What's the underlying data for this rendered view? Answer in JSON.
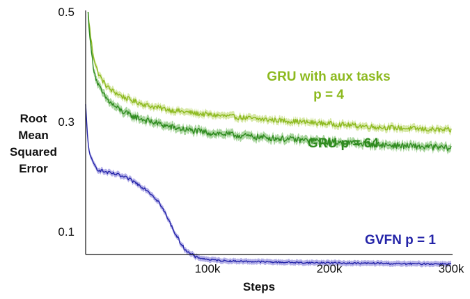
{
  "chart_data": {
    "type": "line",
    "xlabel": "Steps",
    "ylabel_lines": [
      "Root",
      "Mean",
      "Squared",
      "Error"
    ],
    "xlim": [
      0,
      300000
    ],
    "ylim": [
      0.058,
      0.5
    ],
    "x_ticks": [
      {
        "value": 100000,
        "label": "100k"
      },
      {
        "value": 200000,
        "label": "200k"
      },
      {
        "value": 300000,
        "label": "300k"
      }
    ],
    "y_ticks": [
      {
        "value": 0.5,
        "label": "0.5"
      },
      {
        "value": 0.3,
        "label": "0.3"
      },
      {
        "value": 0.1,
        "label": "0.1"
      }
    ],
    "grid": false,
    "legend": "inline labels",
    "series": [
      {
        "name": "GRU with aux tasks p = 4",
        "label_lines": [
          "GRU with aux tasks",
          "p = 4"
        ],
        "color": "#8cb91e",
        "band_color": "#c9e08a",
        "x": [
          2000,
          4000,
          6000,
          8000,
          10000,
          13000,
          16000,
          20000,
          25000,
          30000,
          35000,
          40000,
          50000,
          60000,
          70000,
          80000,
          90000,
          100000,
          120000,
          140000,
          160000,
          180000,
          200000,
          220000,
          240000,
          260000,
          280000,
          300000
        ],
        "values": [
          0.5,
          0.455,
          0.425,
          0.405,
          0.39,
          0.378,
          0.368,
          0.359,
          0.352,
          0.346,
          0.341,
          0.337,
          0.33,
          0.325,
          0.321,
          0.318,
          0.315,
          0.313,
          0.309,
          0.305,
          0.302,
          0.299,
          0.296,
          0.293,
          0.29,
          0.288,
          0.286,
          0.284
        ]
      },
      {
        "name": "GRU p = 64",
        "label_lines": [
          "GRU p = 64"
        ],
        "color": "#2e8a1e",
        "band_color": "#8cc77e",
        "x": [
          2000,
          4000,
          6000,
          8000,
          10000,
          13000,
          16000,
          20000,
          25000,
          30000,
          35000,
          40000,
          50000,
          60000,
          70000,
          80000,
          90000,
          100000,
          120000,
          140000,
          160000,
          180000,
          200000,
          220000,
          240000,
          260000,
          280000,
          300000
        ],
        "values": [
          0.5,
          0.44,
          0.405,
          0.383,
          0.368,
          0.355,
          0.345,
          0.335,
          0.326,
          0.319,
          0.313,
          0.309,
          0.302,
          0.296,
          0.29,
          0.286,
          0.283,
          0.28,
          0.276,
          0.272,
          0.269,
          0.266,
          0.263,
          0.261,
          0.258,
          0.256,
          0.254,
          0.252
        ]
      },
      {
        "name": "GVFN p = 1",
        "label_lines": [
          "GVFN p = 1"
        ],
        "color": "#2424a8",
        "band_color": "#9b96e0",
        "x": [
          0,
          1000,
          2000,
          4000,
          6000,
          8000,
          10000,
          15000,
          20000,
          25000,
          30000,
          35000,
          40000,
          45000,
          50000,
          55000,
          60000,
          65000,
          70000,
          75000,
          80000,
          85000,
          90000,
          95000,
          100000,
          110000,
          120000,
          140000,
          160000,
          180000,
          200000,
          220000,
          240000,
          260000,
          280000,
          300000
        ],
        "values": [
          0.33,
          0.29,
          0.26,
          0.235,
          0.225,
          0.218,
          0.213,
          0.209,
          0.206,
          0.204,
          0.2,
          0.196,
          0.19,
          0.183,
          0.176,
          0.166,
          0.154,
          0.134,
          0.112,
          0.09,
          0.072,
          0.06,
          0.054,
          0.051,
          0.049,
          0.047,
          0.046,
          0.045,
          0.044,
          0.043,
          0.043,
          0.042,
          0.042,
          0.041,
          0.041,
          0.041
        ]
      }
    ]
  }
}
